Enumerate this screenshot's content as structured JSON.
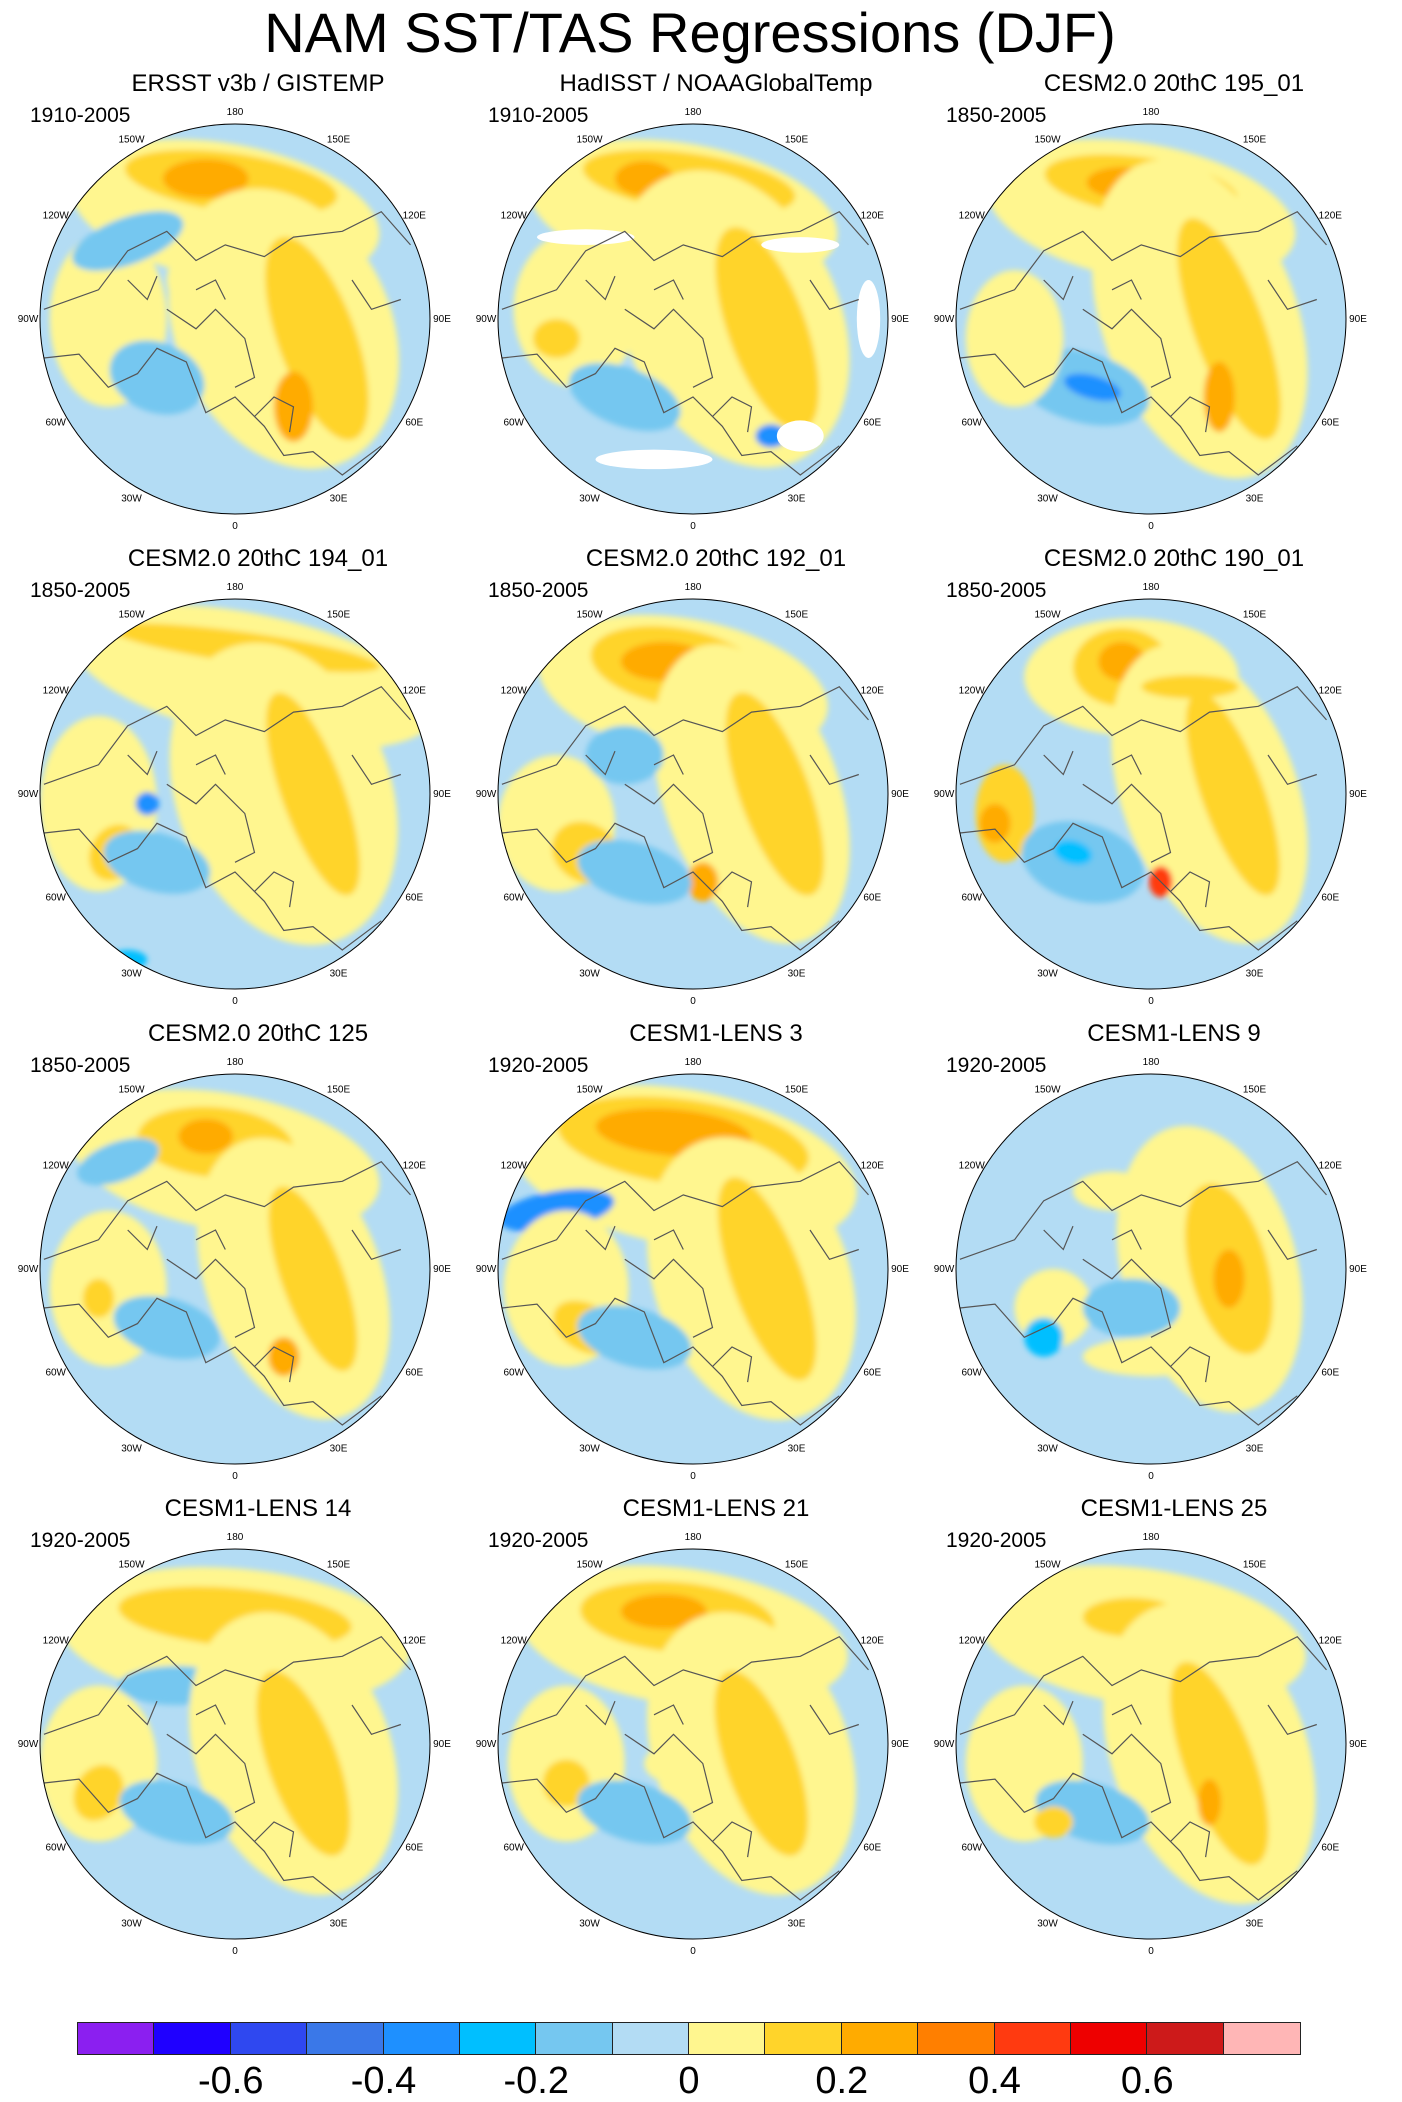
{
  "title": "NAM SST/TAS Regressions (DJF)",
  "panels": [
    {
      "title": "ERSST v3b / GISTEMP",
      "period": "1910-2005",
      "pattern": "obs1"
    },
    {
      "title": "HadISST / NOAAGlobalTemp",
      "period": "1910-2005",
      "pattern": "obs2"
    },
    {
      "title": "CESM2.0 20thC 195_01",
      "period": "1850-2005",
      "pattern": "m1"
    },
    {
      "title": "CESM2.0 20thC 194_01",
      "period": "1850-2005",
      "pattern": "m2"
    },
    {
      "title": "CESM2.0 20thC 192_01",
      "period": "1850-2005",
      "pattern": "m3"
    },
    {
      "title": "CESM2.0 20thC 190_01",
      "period": "1850-2005",
      "pattern": "m4"
    },
    {
      "title": "CESM2.0 20thC 125",
      "period": "1850-2005",
      "pattern": "m5"
    },
    {
      "title": "CESM1-LENS 3",
      "period": "1920-2005",
      "pattern": "l1"
    },
    {
      "title": "CESM1-LENS 9",
      "period": "1920-2005",
      "pattern": "l2"
    },
    {
      "title": "CESM1-LENS 14",
      "period": "1920-2005",
      "pattern": "l3"
    },
    {
      "title": "CESM1-LENS 21",
      "period": "1920-2005",
      "pattern": "l4"
    },
    {
      "title": "CESM1-LENS 25",
      "period": "1920-2005",
      "pattern": "l5"
    }
  ],
  "longitude_labels": [
    "180",
    "150E",
    "120E",
    "90E",
    "60E",
    "30E",
    "0",
    "30W",
    "60W",
    "90W",
    "120W",
    "150W"
  ],
  "colorbar": {
    "colors": [
      "#8b1ff0",
      "#1f00ff",
      "#2f48f0",
      "#3a78e8",
      "#1e90ff",
      "#00bfff",
      "#75c7f0",
      "#b3dcf4",
      "#fff68f",
      "#ffd42a",
      "#ffab00",
      "#ff7f00",
      "#ff3a10",
      "#ee0000",
      "#cd1a1a",
      "#ffb6b6"
    ],
    "tick_labels": [
      "-0.6",
      "-0.4",
      "-0.2",
      "0",
      "0.2",
      "0.4",
      "0.6"
    ],
    "tick_values": [
      -0.6,
      -0.4,
      -0.2,
      0,
      0.2,
      0.4,
      0.6
    ]
  }
}
